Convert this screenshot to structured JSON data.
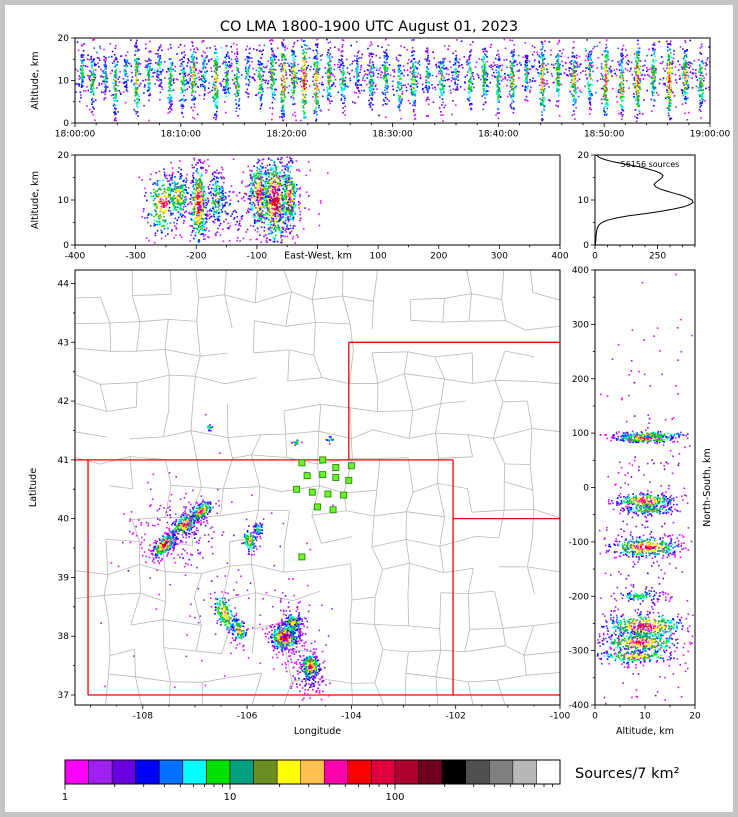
{
  "title": "CO LMA 1800-1900 UTC August 01, 2023",
  "colors": {
    "state_border": "#ff0000",
    "county": "#b8b8b8",
    "station": "#6ef52a",
    "station_edge": "#1f8c00",
    "profile_line": "#000000",
    "axis": "#000000"
  },
  "colorbar": {
    "label": "Sources/7 km²",
    "tick_labels": [
      "1",
      "10",
      "100"
    ],
    "scale": "log",
    "range": [
      1,
      1000
    ],
    "segment_colors": [
      "#ff00ff",
      "#a020f0",
      "#6a00e0",
      "#0000ff",
      "#0070ff",
      "#00ffff",
      "#00e000",
      "#00a080",
      "#6b8e23",
      "#ffff00",
      "#ffc04d",
      "#ff00aa",
      "#ff0000",
      "#e00040",
      "#b00030",
      "#700020",
      "#000000",
      "#505050",
      "#808080",
      "#b8b8b8",
      "#ffffff"
    ]
  },
  "chart_data": [
    {
      "id": "time_height",
      "type": "scatter",
      "ylabel": "Altitude, km",
      "xtick_labels": [
        "18:00:00",
        "18:10:00",
        "18:20:00",
        "18:30:00",
        "18:40:00",
        "18:50:00",
        "19:00:00"
      ],
      "x_range_seconds": [
        0,
        3600
      ],
      "ylim": [
        0,
        20
      ],
      "yticks": [
        0,
        10,
        20
      ],
      "background": {
        "n": 1300,
        "alt_mean": 12,
        "alt_sd": 3.2
      },
      "bursts": [
        [
          40,
          12,
          3,
          50,
          0.45
        ],
        [
          100,
          10,
          4,
          70,
          0.55
        ],
        [
          170,
          11,
          3,
          45,
          0.4
        ],
        [
          230,
          9,
          4,
          85,
          0.6
        ],
        [
          290,
          12,
          3,
          40,
          0.4
        ],
        [
          350,
          10,
          5,
          95,
          0.65
        ],
        [
          420,
          11,
          3,
          55,
          0.5
        ],
        [
          480,
          13,
          3,
          40,
          0.4
        ],
        [
          540,
          10,
          4,
          75,
          0.55
        ],
        [
          610,
          9,
          4,
          60,
          0.5
        ],
        [
          670,
          11,
          4,
          95,
          0.7
        ],
        [
          730,
          12,
          3,
          50,
          0.45
        ],
        [
          800,
          10,
          5,
          105,
          0.7
        ],
        [
          860,
          11,
          4,
          65,
          0.5
        ],
        [
          920,
          9,
          4,
          70,
          0.6
        ],
        [
          980,
          12,
          3,
          45,
          0.4
        ],
        [
          1050,
          10,
          4,
          65,
          0.5
        ],
        [
          1120,
          11,
          4,
          85,
          0.6
        ],
        [
          1180,
          10,
          5,
          120,
          0.8
        ],
        [
          1240,
          11,
          4,
          90,
          0.7
        ],
        [
          1300,
          10,
          6,
          140,
          0.85
        ],
        [
          1370,
          9,
          5,
          115,
          0.75
        ],
        [
          1440,
          11,
          4,
          80,
          0.6
        ],
        [
          1520,
          10,
          4,
          70,
          0.5
        ],
        [
          1600,
          12,
          3,
          50,
          0.4
        ],
        [
          1680,
          10,
          4,
          65,
          0.5
        ],
        [
          1760,
          11,
          4,
          75,
          0.55
        ],
        [
          1840,
          9,
          4,
          60,
          0.5
        ],
        [
          1920,
          10,
          4,
          85,
          0.6
        ],
        [
          2000,
          11,
          3,
          55,
          0.45
        ],
        [
          2080,
          10,
          4,
          75,
          0.55
        ],
        [
          2160,
          12,
          3,
          45,
          0.4
        ],
        [
          2240,
          10,
          4,
          65,
          0.5
        ],
        [
          2320,
          11,
          4,
          85,
          0.6
        ],
        [
          2400,
          9,
          4,
          75,
          0.55
        ],
        [
          2480,
          10,
          4,
          95,
          0.65
        ],
        [
          2560,
          11,
          3,
          55,
          0.45
        ],
        [
          2650,
          10,
          5,
          115,
          0.75
        ],
        [
          2740,
          11,
          4,
          85,
          0.6
        ],
        [
          2830,
          10,
          4,
          95,
          0.7
        ],
        [
          2920,
          11,
          4,
          70,
          0.55
        ],
        [
          3010,
          10,
          5,
          125,
          0.8
        ],
        [
          3100,
          9,
          4,
          95,
          0.7
        ],
        [
          3190,
          10,
          5,
          135,
          0.8
        ],
        [
          3280,
          11,
          4,
          80,
          0.6
        ],
        [
          3370,
          10,
          5,
          140,
          0.85
        ],
        [
          3460,
          11,
          4,
          95,
          0.7
        ],
        [
          3550,
          10,
          4,
          85,
          0.6
        ]
      ]
    },
    {
      "id": "east_west_height",
      "type": "scatter",
      "xlabel": "East-West, km",
      "ylabel": "Altitude, km",
      "xlim": [
        -400,
        400
      ],
      "xticks": [
        -400,
        -300,
        -200,
        -100,
        100,
        200,
        300,
        400
      ],
      "ylim": [
        0,
        20
      ],
      "yticks": [
        0,
        10,
        20
      ],
      "clusters": [
        [
          -255,
          9,
          14,
          3.5,
          260,
          0.8
        ],
        [
          -230,
          11,
          9,
          3,
          190,
          0.7
        ],
        [
          -196,
          9,
          7,
          4.5,
          380,
          0.92
        ],
        [
          -166,
          10,
          8,
          3,
          150,
          0.6
        ],
        [
          -150,
          8,
          30,
          4,
          120,
          0.25
        ],
        [
          -96,
          11,
          9,
          4,
          320,
          0.85
        ],
        [
          -70,
          10,
          11,
          5,
          520,
          0.95
        ],
        [
          -46,
          11,
          7,
          4,
          260,
          0.8
        ],
        [
          -75,
          9,
          35,
          5,
          150,
          0.2
        ]
      ]
    },
    {
      "id": "source_profile",
      "type": "line",
      "annotation": "56156 sources",
      "xlim": [
        0,
        400
      ],
      "xticks": [
        0,
        250
      ],
      "ylim": [
        0,
        20
      ],
      "yticks": [
        0,
        10,
        20
      ],
      "altitude_step_km": 0.5,
      "counts": [
        2,
        2,
        3,
        3,
        4,
        5,
        6,
        8,
        11,
        16,
        28,
        48,
        85,
        135,
        205,
        265,
        315,
        355,
        380,
        392,
        388,
        372,
        348,
        318,
        285,
        258,
        242,
        236,
        246,
        258,
        268,
        272,
        260,
        238,
        205,
        168,
        118,
        72,
        38,
        16,
        5
      ]
    },
    {
      "id": "plan_view",
      "type": "scatter",
      "xlabel": "Longitude",
      "ylabel": "Latitude",
      "xlim": [
        -109.3,
        -100
      ],
      "ylim": [
        36.83,
        44.23
      ],
      "xticks": [
        -108,
        -106,
        -104,
        -102,
        -100
      ],
      "yticks": [
        37,
        38,
        39,
        40,
        41,
        42,
        43,
        44
      ],
      "state_borders": [
        [
          -109.05,
          37,
          -109.05,
          41
        ],
        [
          -109.3,
          41,
          -102.05,
          41
        ],
        [
          -102.05,
          37,
          -102.05,
          41
        ],
        [
          -109.05,
          37,
          -100,
          37
        ],
        [
          -104.05,
          41,
          -104.05,
          43
        ],
        [
          -104.05,
          43,
          -100,
          43
        ],
        [
          -102.05,
          40,
          -100,
          40
        ]
      ],
      "stations": [
        [
          -104.95,
          40.95
        ],
        [
          -104.55,
          41.0
        ],
        [
          -104.3,
          40.87
        ],
        [
          -104.0,
          40.9
        ],
        [
          -104.85,
          40.73
        ],
        [
          -104.55,
          40.75
        ],
        [
          -104.3,
          40.7
        ],
        [
          -104.05,
          40.65
        ],
        [
          -105.05,
          40.5
        ],
        [
          -104.75,
          40.45
        ],
        [
          -104.45,
          40.42
        ],
        [
          -104.15,
          40.4
        ],
        [
          -104.65,
          40.2
        ],
        [
          -104.35,
          40.15
        ],
        [
          -104.95,
          39.35
        ]
      ],
      "clusters": [
        [
          -107.58,
          39.55,
          0.14,
          0.07,
          300,
          0.9,
          40
        ],
        [
          -107.2,
          39.9,
          0.16,
          0.08,
          230,
          0.8,
          40
        ],
        [
          -106.88,
          40.12,
          0.12,
          0.06,
          200,
          0.85,
          35
        ],
        [
          -107.3,
          39.8,
          0.45,
          0.3,
          140,
          0.18,
          0
        ],
        [
          -105.95,
          39.62,
          0.07,
          0.1,
          90,
          0.7,
          0
        ],
        [
          -105.78,
          39.82,
          0.05,
          0.06,
          50,
          0.5,
          0
        ],
        [
          -106.42,
          38.38,
          0.09,
          0.18,
          170,
          0.75,
          30
        ],
        [
          -106.15,
          38.1,
          0.07,
          0.12,
          120,
          0.7,
          20
        ],
        [
          -105.28,
          37.98,
          0.13,
          0.11,
          430,
          0.95,
          0
        ],
        [
          -105.12,
          38.22,
          0.09,
          0.09,
          150,
          0.7,
          0
        ],
        [
          -105.2,
          38.1,
          0.3,
          0.3,
          120,
          0.2,
          0
        ],
        [
          -104.78,
          37.48,
          0.09,
          0.11,
          240,
          0.85,
          0
        ],
        [
          -104.8,
          37.3,
          0.22,
          0.18,
          100,
          0.2,
          0
        ],
        [
          -106.72,
          41.55,
          0.04,
          0.03,
          14,
          0.45,
          0
        ],
        [
          -105.06,
          41.3,
          0.04,
          0.03,
          16,
          0.5,
          0
        ],
        [
          -104.4,
          41.34,
          0.04,
          0.03,
          12,
          0.45,
          0
        ],
        [
          -106.6,
          39.2,
          1.2,
          1.0,
          110,
          0.08,
          0
        ]
      ]
    },
    {
      "id": "north_south_height",
      "type": "scatter",
      "xlabel": "Altitude, km",
      "ylabel": "North-South, km",
      "xlim": [
        0,
        20
      ],
      "xticks": [
        0,
        10,
        20
      ],
      "ylim": [
        -400,
        400
      ],
      "yticks": [
        400,
        300,
        200,
        100,
        0,
        -100,
        -200,
        -300,
        -400
      ],
      "clusters": [
        [
          10,
          90,
          3,
          4,
          240,
          0.85
        ],
        [
          11,
          97,
          4,
          3,
          110,
          0.6
        ],
        [
          10,
          -25,
          3,
          7,
          280,
          0.85
        ],
        [
          11,
          -42,
          3,
          4,
          120,
          0.6
        ],
        [
          10,
          -110,
          3.5,
          9,
          340,
          0.9
        ],
        [
          9,
          -200,
          2.5,
          5,
          90,
          0.5
        ],
        [
          10,
          -255,
          4,
          12,
          400,
          0.9
        ],
        [
          9,
          -285,
          4,
          10,
          320,
          0.85
        ],
        [
          8,
          -310,
          4,
          7,
          190,
          0.7
        ],
        [
          10,
          -120,
          5,
          180,
          320,
          0.13
        ]
      ]
    }
  ]
}
